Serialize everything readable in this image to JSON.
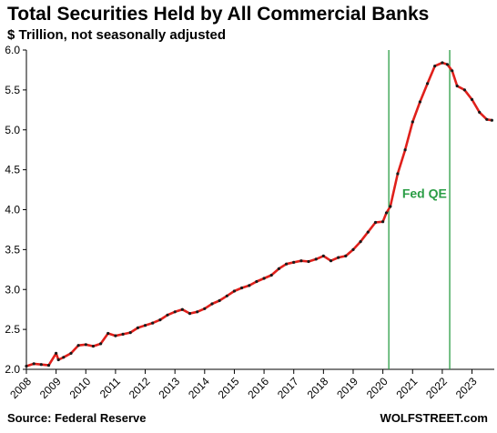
{
  "title": "Total Securities Held by All Commercial Banks",
  "subtitle": "$ Trillion, not seasonally adjusted",
  "source": "Source: Federal Reserve",
  "credit": "WOLFSTREET.com",
  "colors": {
    "line": "#e0201b",
    "markers": "#1a1a1a",
    "annotation": "#2a9d45",
    "axis": "#000000"
  },
  "chart_data": {
    "type": "line",
    "title": "Total Securities Held by All Commercial Banks",
    "subtitle": "$ Trillion, not seasonally adjusted",
    "xlabel": "",
    "ylabel": "",
    "ylim": [
      2.0,
      6.0
    ],
    "xlim": [
      2008.0,
      2023.75
    ],
    "yticks": [
      "2.0",
      "2.5",
      "3.0",
      "3.5",
      "4.0",
      "4.5",
      "5.0",
      "5.5",
      "6.0"
    ],
    "xticks": [
      "2008",
      "2009",
      "2010",
      "2011",
      "2012",
      "2013",
      "2014",
      "2015",
      "2016",
      "2017",
      "2018",
      "2019",
      "2020",
      "2021",
      "2022",
      "2023"
    ],
    "grid": false,
    "legend": "none",
    "series": [
      {
        "x": [
          2008.0,
          2008.25,
          2008.5,
          2008.75,
          2009.0,
          2009.08,
          2009.25,
          2009.5,
          2009.75,
          2010.0,
          2010.25,
          2010.5,
          2010.75,
          2011.0,
          2011.25,
          2011.5,
          2011.75,
          2012.0,
          2012.25,
          2012.5,
          2012.75,
          2013.0,
          2013.25,
          2013.5,
          2013.75,
          2014.0,
          2014.25,
          2014.5,
          2014.75,
          2015.0,
          2015.25,
          2015.5,
          2015.75,
          2016.0,
          2016.25,
          2016.5,
          2016.75,
          2017.0,
          2017.25,
          2017.5,
          2017.75,
          2018.0,
          2018.25,
          2018.5,
          2018.75,
          2019.0,
          2019.25,
          2019.5,
          2019.75,
          2020.0,
          2020.12,
          2020.25,
          2020.5,
          2020.75,
          2021.0,
          2021.25,
          2021.5,
          2021.75,
          2022.0,
          2022.17,
          2022.33,
          2022.5,
          2022.75,
          2023.0,
          2023.25,
          2023.5,
          2023.67
        ],
        "values": [
          2.04,
          2.07,
          2.06,
          2.05,
          2.2,
          2.12,
          2.15,
          2.2,
          2.3,
          2.31,
          2.29,
          2.32,
          2.45,
          2.42,
          2.44,
          2.46,
          2.52,
          2.55,
          2.58,
          2.62,
          2.68,
          2.72,
          2.75,
          2.7,
          2.72,
          2.76,
          2.82,
          2.86,
          2.92,
          2.98,
          3.02,
          3.05,
          3.1,
          3.14,
          3.18,
          3.26,
          3.32,
          3.34,
          3.36,
          3.35,
          3.38,
          3.42,
          3.36,
          3.4,
          3.42,
          3.5,
          3.6,
          3.72,
          3.84,
          3.85,
          3.96,
          4.04,
          4.45,
          4.75,
          5.1,
          5.35,
          5.58,
          5.8,
          5.84,
          5.82,
          5.74,
          5.55,
          5.5,
          5.38,
          5.22,
          5.13,
          5.12
        ]
      }
    ],
    "annotations": [
      {
        "type": "vline",
        "x": 2020.2
      },
      {
        "type": "vline",
        "x": 2022.25
      },
      {
        "type": "text",
        "text": "Fed QE",
        "x": 2020.65,
        "y": 4.15
      }
    ]
  }
}
